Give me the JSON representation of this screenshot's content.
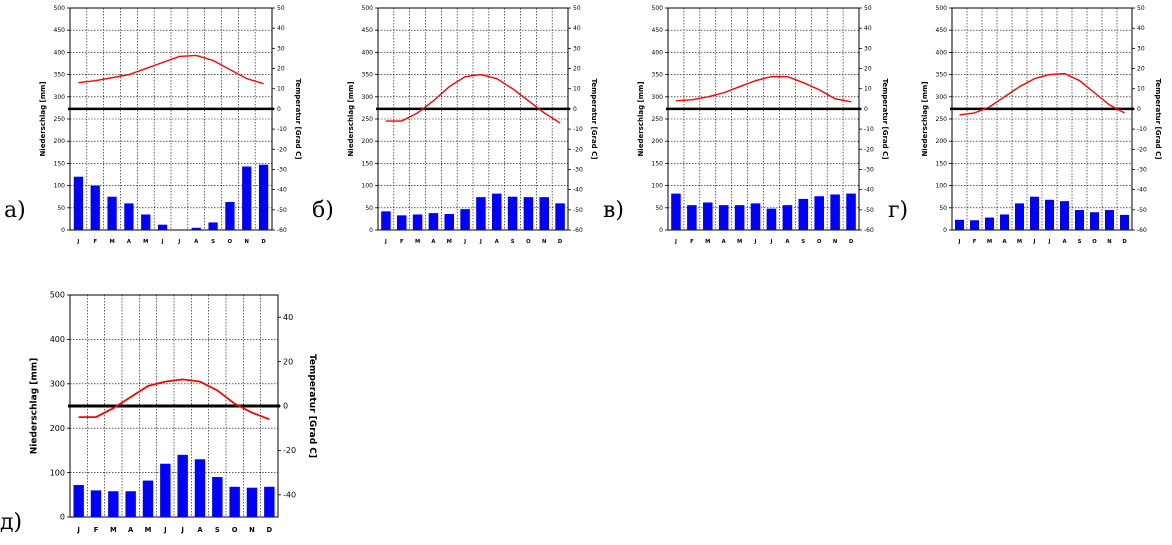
{
  "chart_data": [
    {
      "type": "climate-diagram",
      "panel_label": "а)",
      "ylabel_left": "Niederschlag [mm]",
      "ylabel_right": "Temperatur [Grad C]",
      "left_ticks": [
        "0",
        "50",
        "100",
        "150",
        "200",
        "250",
        "300",
        "350",
        "400",
        "450",
        "500"
      ],
      "right_ticks": [
        "-60",
        "-50",
        "-40",
        "-30",
        "-20",
        "-10",
        "0",
        "10",
        "20",
        "30",
        "40",
        "50"
      ],
      "months": [
        "J",
        "F",
        "M",
        "A",
        "M",
        "J",
        "J",
        "A",
        "S",
        "O",
        "N",
        "D"
      ],
      "precip_ylim": [
        0,
        500
      ],
      "temp_ylim": [
        -60,
        50
      ],
      "precipitation": [
        120,
        100,
        75,
        60,
        35,
        12,
        0,
        5,
        17,
        63,
        143,
        147
      ],
      "temperature": [
        13,
        14,
        15.5,
        17,
        20,
        23,
        26,
        26.5,
        24,
        19.5,
        15,
        12.5
      ],
      "grid": true,
      "colors": {
        "bars": "#0000ff",
        "line": "#ff0000",
        "zero": "#000000"
      }
    },
    {
      "type": "climate-diagram",
      "panel_label": "б)",
      "ylabel_left": "Niederschlag [mm]",
      "ylabel_right": "Temperatur [Grad C]",
      "left_ticks": [
        "0",
        "50",
        "100",
        "150",
        "200",
        "250",
        "300",
        "350",
        "400",
        "450",
        "500"
      ],
      "right_ticks": [
        "-60",
        "-50",
        "-40",
        "-30",
        "-20",
        "-10",
        "0",
        "10",
        "20",
        "30",
        "40",
        "50"
      ],
      "months": [
        "J",
        "F",
        "M",
        "A",
        "M",
        "J",
        "J",
        "A",
        "S",
        "O",
        "N",
        "D"
      ],
      "precip_ylim": [
        0,
        500
      ],
      "temp_ylim": [
        -60,
        50
      ],
      "precipitation": [
        42,
        33,
        35,
        38,
        36,
        47,
        74,
        82,
        75,
        74,
        74,
        60
      ],
      "temperature": [
        -6,
        -6,
        -2,
        4,
        11,
        16,
        17,
        15,
        10,
        4,
        -2,
        -7
      ],
      "grid": true,
      "colors": {
        "bars": "#0000ff",
        "line": "#ff0000",
        "zero": "#000000"
      }
    },
    {
      "type": "climate-diagram",
      "panel_label": "в)",
      "ylabel_left": "Niederschlag [mm]",
      "ylabel_right": "Temperatur [Grad C]",
      "left_ticks": [
        "0",
        "50",
        "100",
        "150",
        "200",
        "250",
        "300",
        "350",
        "400",
        "450",
        "500"
      ],
      "right_ticks": [
        "-60",
        "-50",
        "-40",
        "-30",
        "-20",
        "-10",
        "0",
        "10",
        "20",
        "30",
        "40",
        "50"
      ],
      "months": [
        "J",
        "F",
        "M",
        "A",
        "M",
        "J",
        "J",
        "A",
        "S",
        "O",
        "N",
        "D"
      ],
      "precip_ylim": [
        0,
        500
      ],
      "temp_ylim": [
        -60,
        50
      ],
      "precipitation": [
        82,
        56,
        62,
        56,
        56,
        60,
        48,
        56,
        70,
        76,
        80,
        82
      ],
      "temperature": [
        4,
        4.5,
        6,
        8,
        11,
        14,
        16,
        16,
        13,
        9.5,
        5,
        3.5
      ],
      "grid": true,
      "colors": {
        "bars": "#0000ff",
        "line": "#ff0000",
        "zero": "#000000"
      }
    },
    {
      "type": "climate-diagram",
      "panel_label": "г)",
      "ylabel_left": "Niederschlag [mm]",
      "ylabel_right": "Temperatur [Grad C]",
      "left_ticks": [
        "0",
        "50",
        "100",
        "150",
        "200",
        "250",
        "300",
        "350",
        "400",
        "450",
        "500"
      ],
      "right_ticks": [
        "-60",
        "-50",
        "-40",
        "-30",
        "-20",
        "-10",
        "0",
        "10",
        "20",
        "30",
        "40",
        "50"
      ],
      "months": [
        "J",
        "F",
        "M",
        "A",
        "M",
        "J",
        "J",
        "A",
        "S",
        "O",
        "N",
        "D"
      ],
      "precip_ylim": [
        0,
        500
      ],
      "temp_ylim": [
        -60,
        50
      ],
      "precipitation": [
        23,
        22,
        28,
        35,
        60,
        75,
        68,
        65,
        45,
        40,
        45,
        34
      ],
      "temperature": [
        -3,
        -2,
        1,
        6,
        11,
        15,
        17,
        17.5,
        14,
        8,
        2,
        -2
      ],
      "grid": true,
      "colors": {
        "bars": "#0000ff",
        "line": "#ff0000",
        "zero": "#000000"
      }
    },
    {
      "type": "climate-diagram",
      "panel_label": "д)",
      "ylabel_left": "Niederschlag [mm]",
      "ylabel_right": "Temperatur [Grad C]",
      "left_ticks": [
        "0",
        "100",
        "200",
        "300",
        "400",
        "500"
      ],
      "right_ticks": [
        "-40",
        "-20",
        "0",
        "20",
        "40"
      ],
      "months": [
        "J",
        "F",
        "M",
        "A",
        "M",
        "J",
        "J",
        "A",
        "S",
        "O",
        "N",
        "D"
      ],
      "precip_ylim": [
        0,
        500
      ],
      "temp_ylim": [
        -50,
        50
      ],
      "precipitation": [
        72,
        60,
        58,
        58,
        82,
        120,
        140,
        130,
        90,
        68,
        66,
        68
      ],
      "temperature": [
        -5,
        -5,
        -1,
        4,
        9,
        11,
        12,
        11,
        7,
        1,
        -3,
        -6
      ],
      "grid": true,
      "colors": {
        "bars": "#0000ff",
        "line": "#ff0000",
        "zero": "#000000"
      }
    }
  ]
}
